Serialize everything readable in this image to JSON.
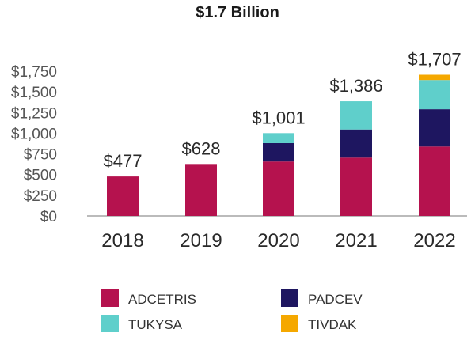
{
  "chart_data": {
    "type": "bar",
    "stacked": true,
    "title": "$1.7 Billion",
    "categories": [
      "2018",
      "2019",
      "2020",
      "2021",
      "2022"
    ],
    "series": [
      {
        "name": "ADCETRIS",
        "color": "#B5124E",
        "values": [
          477,
          628,
          658,
          705,
          839
        ]
      },
      {
        "name": "PADCEV",
        "color": "#1E1660",
        "values": [
          0,
          0,
          222,
          340,
          451
        ]
      },
      {
        "name": "TUKYSA",
        "color": "#5FCFCB",
        "values": [
          0,
          0,
          121,
          341,
          353
        ]
      },
      {
        "name": "TIVDAK",
        "color": "#F5A800",
        "values": [
          0,
          0,
          0,
          0,
          64
        ]
      }
    ],
    "totals": [
      477,
      628,
      1001,
      1386,
      1707
    ],
    "total_labels": [
      "$477",
      "$628",
      "$1,001",
      "$1,386",
      "$1,707"
    ],
    "ylim": [
      0,
      1750
    ],
    "yticks": [
      0,
      250,
      500,
      750,
      1000,
      1250,
      1500,
      1750
    ],
    "ytick_labels": [
      "$0",
      "$250",
      "$500",
      "$750",
      "$1,000",
      "$1,250",
      "$1,500",
      "$1,750"
    ],
    "xlabel": "",
    "ylabel": "",
    "legend": {
      "placement": "bottom",
      "entries": [
        "ADCETRIS",
        "PADCEV",
        "TUKYSA",
        "TIVDAK"
      ]
    }
  }
}
